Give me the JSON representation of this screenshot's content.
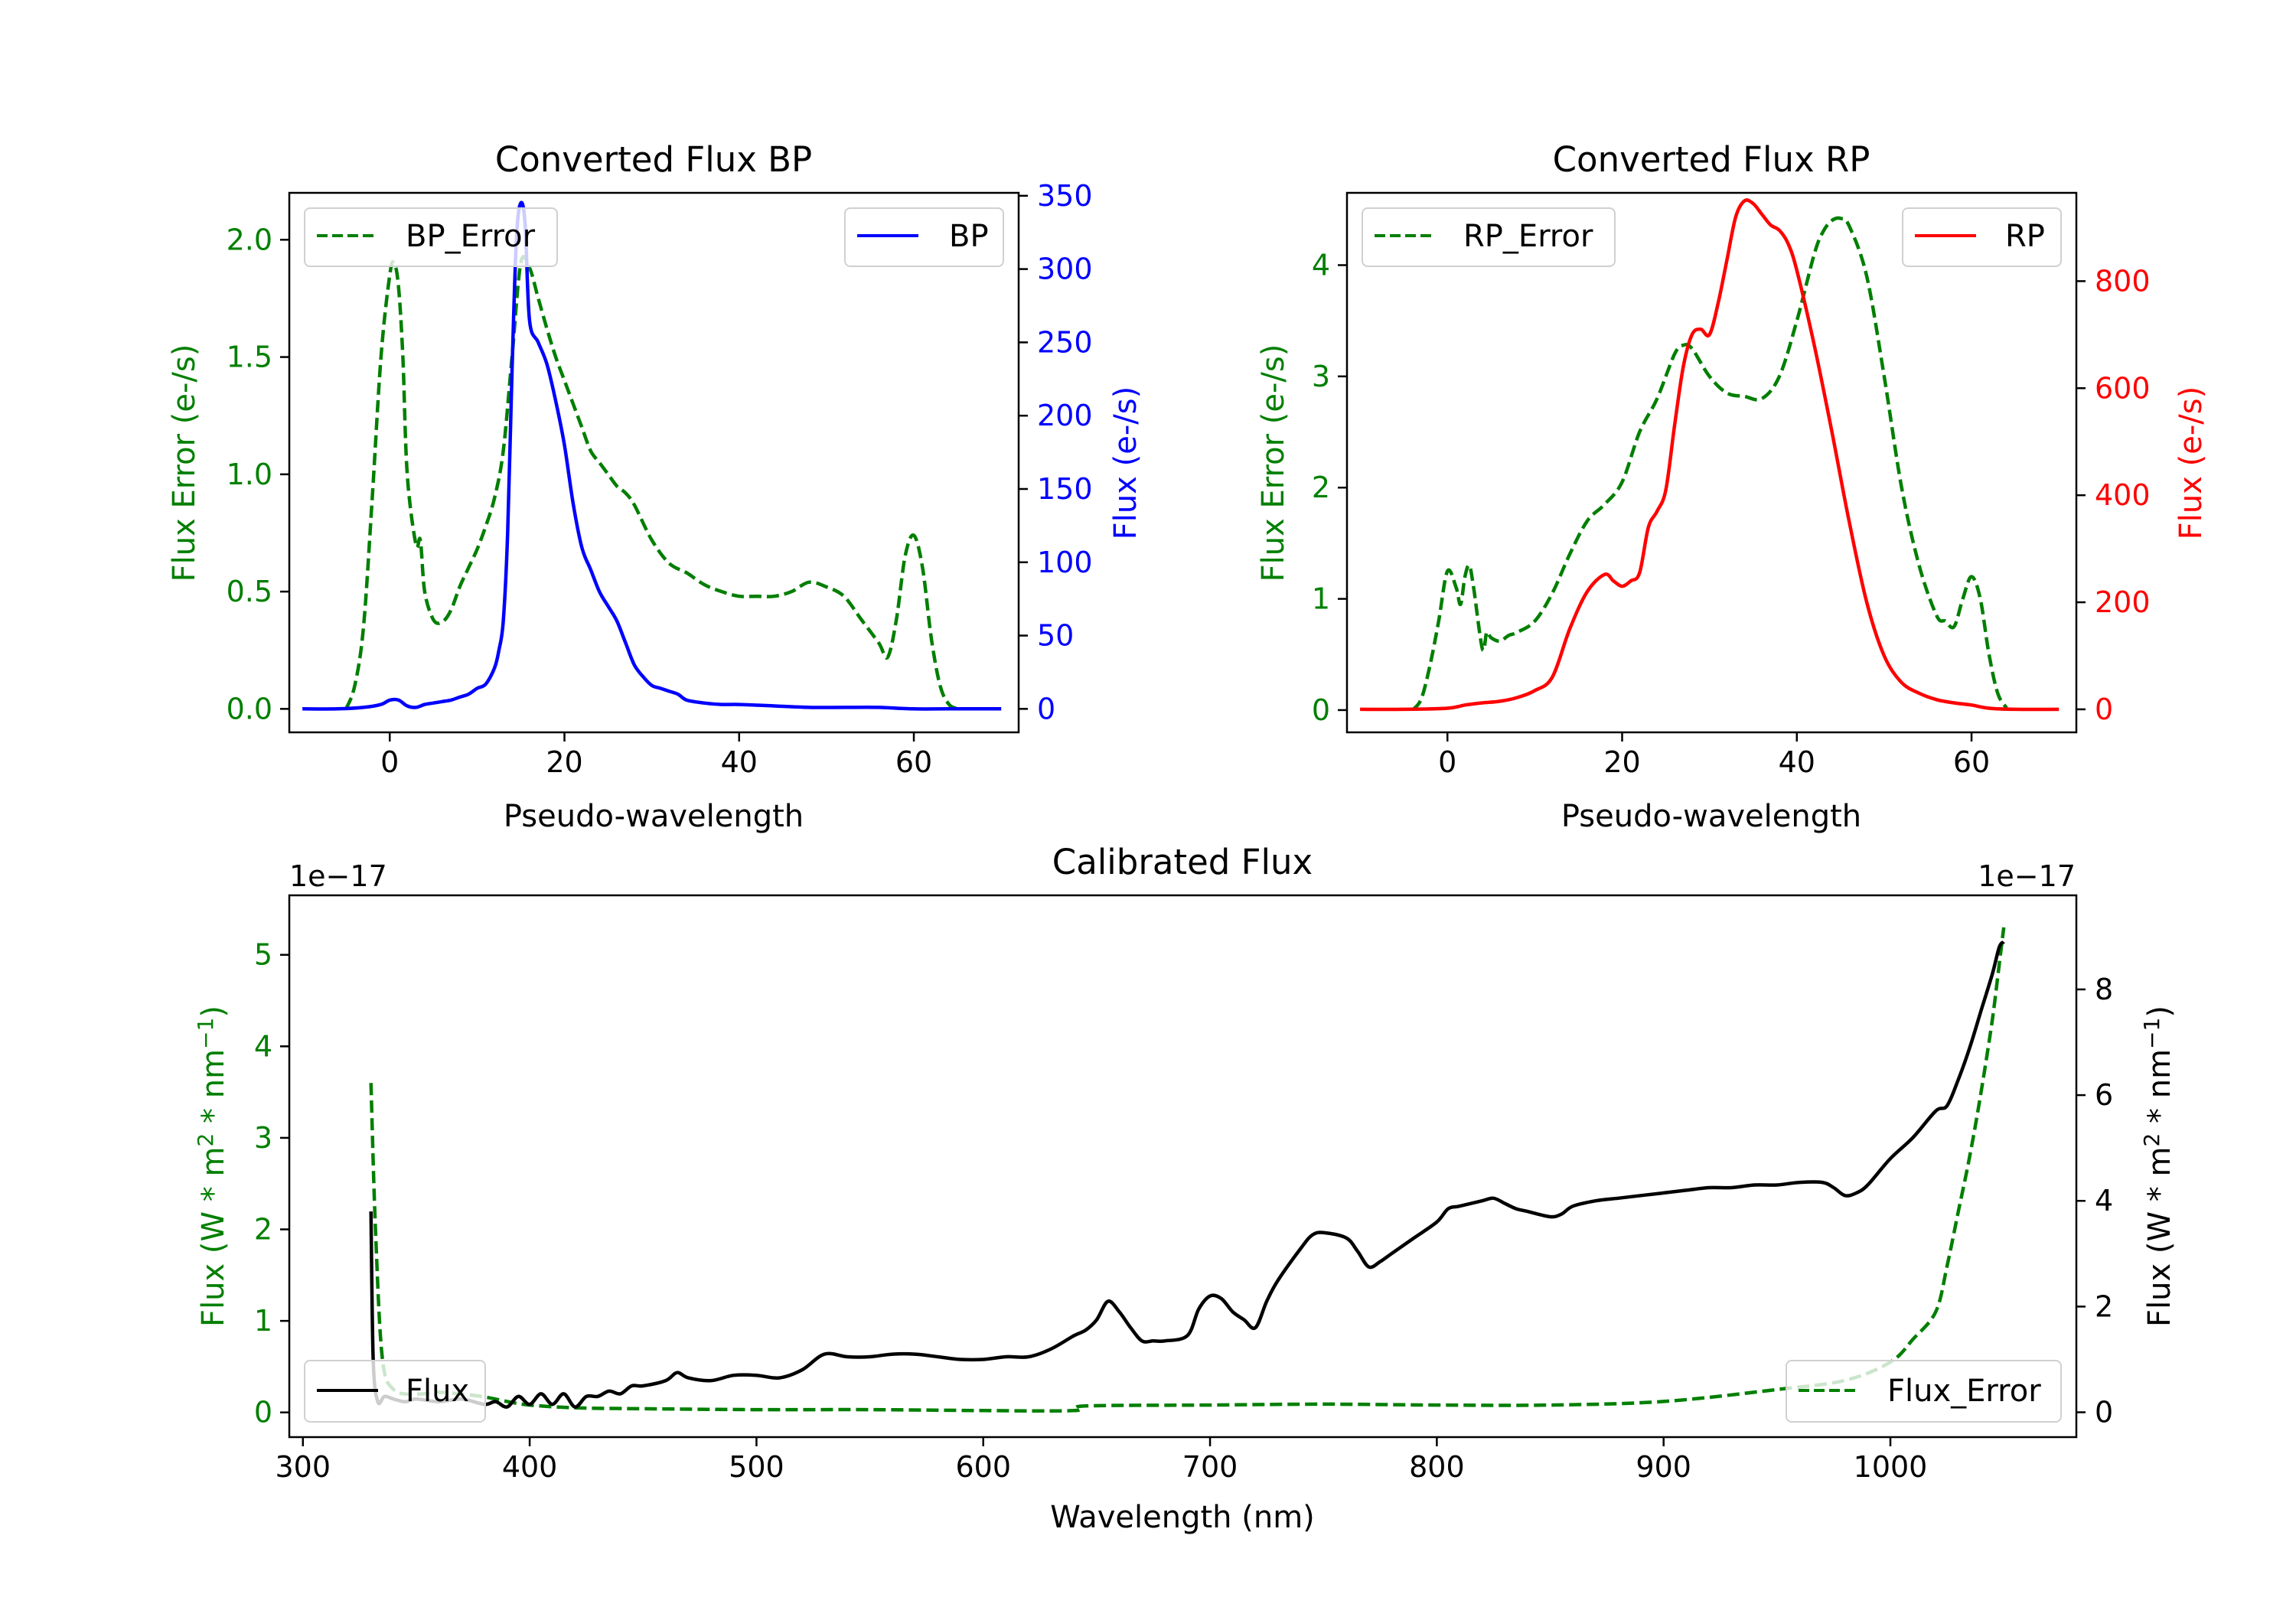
{
  "colors": {
    "bp": "#0000ff",
    "rp": "#ff0000",
    "error": "#007f00",
    "flux": "#000000",
    "axis": "#000000",
    "background": "#ffffff"
  },
  "chart_data": [
    {
      "id": "bp",
      "type": "line",
      "title": "Converted Flux BP",
      "xlabel": "Pseudo-wavelength",
      "ylabel_left": "Flux Error (e-/s)",
      "ylabel_right": "Flux (e-/s)",
      "xlim": [
        -11.5,
        72
      ],
      "ylim_left": [
        -0.1,
        2.2
      ],
      "ylim_right": [
        -16,
        352
      ],
      "xticks": [
        0,
        20,
        40,
        60
      ],
      "yticks_left": [
        "0.0",
        "0.5",
        "1.0",
        "1.5",
        "2.0"
      ],
      "yticks_right": [
        0,
        50,
        100,
        150,
        200,
        250,
        300,
        350
      ],
      "legend_left": {
        "label": "BP_Error",
        "placement": "upper left"
      },
      "legend_right": {
        "label": "BP",
        "placement": "upper right"
      },
      "series": [
        {
          "name": "BP_Error",
          "axis": "left",
          "style": "dashed",
          "color": "#007f00",
          "x": [
            -5,
            -4,
            -3,
            -2,
            -1,
            0,
            0.5,
            1,
            1.5,
            2,
            3,
            3.5,
            4,
            5,
            6,
            7,
            8,
            9,
            10,
            11,
            12,
            13,
            14,
            15,
            16,
            17,
            18,
            19,
            20,
            21,
            22,
            23,
            24,
            25,
            26,
            27,
            28,
            30,
            32,
            34,
            36,
            38,
            40,
            42,
            44,
            46,
            48,
            50,
            52,
            54,
            56,
            57,
            58,
            59,
            60,
            61,
            62,
            63,
            64,
            65
          ],
          "y": [
            0.0,
            0.1,
            0.35,
            0.9,
            1.5,
            1.85,
            1.9,
            1.8,
            1.5,
            1.0,
            0.7,
            0.72,
            0.5,
            0.38,
            0.37,
            0.42,
            0.52,
            0.6,
            0.68,
            0.78,
            0.9,
            1.1,
            1.5,
            1.9,
            1.88,
            1.75,
            1.62,
            1.5,
            1.4,
            1.3,
            1.2,
            1.1,
            1.05,
            1.0,
            0.95,
            0.92,
            0.87,
            0.72,
            0.62,
            0.58,
            0.53,
            0.5,
            0.48,
            0.48,
            0.48,
            0.5,
            0.54,
            0.52,
            0.48,
            0.38,
            0.28,
            0.22,
            0.38,
            0.65,
            0.74,
            0.6,
            0.3,
            0.1,
            0.02,
            0.0
          ]
        },
        {
          "name": "BP",
          "axis": "right",
          "style": "solid",
          "color": "#0000ff",
          "x": [
            -10,
            -6,
            -3,
            -1,
            0,
            1,
            2,
            3,
            4,
            5,
            6,
            7,
            8,
            9,
            10,
            11,
            12,
            12.5,
            13,
            13.5,
            14,
            14.5,
            15,
            15.5,
            16,
            17,
            18,
            19,
            20,
            21,
            22,
            23,
            24,
            25,
            26,
            27,
            28,
            29,
            30,
            31,
            32,
            33,
            34,
            36,
            38,
            40,
            44,
            48,
            52,
            56,
            60,
            64,
            70
          ],
          "y": [
            0,
            0,
            1,
            3,
            6,
            6,
            2,
            1,
            3,
            4,
            5,
            6,
            8,
            10,
            14,
            17,
            28,
            40,
            60,
            120,
            230,
            320,
            345,
            330,
            265,
            250,
            235,
            210,
            180,
            140,
            110,
            95,
            80,
            70,
            60,
            45,
            30,
            22,
            16,
            14,
            12,
            10,
            6,
            4,
            3,
            3,
            2,
            1,
            1,
            1,
            0,
            0,
            0
          ]
        }
      ]
    },
    {
      "id": "rp",
      "type": "line",
      "title": "Converted Flux RP",
      "xlabel": "Pseudo-wavelength",
      "ylabel_left": "Flux Error (e-/s)",
      "ylabel_right": "Flux (e-/s)",
      "xlim": [
        -11.5,
        72
      ],
      "ylim_left": [
        -0.2,
        4.65
      ],
      "ylim_right": [
        -43,
        965
      ],
      "xticks": [
        0,
        20,
        40,
        60
      ],
      "yticks_left": [
        0,
        1,
        2,
        3,
        4
      ],
      "yticks_right": [
        0,
        200,
        400,
        600,
        800
      ],
      "legend_left": {
        "label": "RP_Error",
        "placement": "upper left"
      },
      "legend_right": {
        "label": "RP",
        "placement": "upper right"
      },
      "series": [
        {
          "name": "RP_Error",
          "axis": "left",
          "style": "dashed",
          "color": "#007f00",
          "x": [
            -4,
            -3,
            -2,
            -1,
            0,
            1,
            1.5,
            2,
            2.5,
            3,
            4,
            4.5,
            5,
            6,
            7,
            8,
            10,
            12,
            14,
            16,
            18,
            20,
            22,
            24,
            26,
            27,
            28,
            30,
            32,
            34,
            36,
            38,
            40,
            42,
            43,
            44,
            45,
            46,
            48,
            50,
            52,
            54,
            56,
            57,
            58,
            59,
            60,
            61,
            62,
            63,
            64
          ],
          "y": [
            0,
            0.1,
            0.4,
            0.8,
            1.25,
            1.1,
            0.95,
            1.2,
            1.3,
            1.1,
            0.55,
            0.7,
            0.65,
            0.62,
            0.67,
            0.7,
            0.8,
            1.05,
            1.4,
            1.7,
            1.85,
            2.05,
            2.5,
            2.8,
            3.2,
            3.28,
            3.25,
            3.0,
            2.85,
            2.82,
            2.8,
            3.0,
            3.5,
            4.1,
            4.3,
            4.4,
            4.42,
            4.35,
            3.9,
            3.0,
            2.0,
            1.3,
            0.85,
            0.8,
            0.75,
            1.0,
            1.2,
            1.0,
            0.5,
            0.15,
            0.02
          ]
        },
        {
          "name": "RP",
          "axis": "right",
          "style": "solid",
          "color": "#ff0000",
          "x": [
            -10,
            -5,
            0,
            2,
            4,
            6,
            8,
            10,
            12,
            14,
            16,
            18,
            19,
            20,
            21,
            22,
            23,
            24,
            25,
            26,
            27,
            28,
            29,
            30,
            31,
            32,
            33,
            34,
            35,
            36,
            37,
            38,
            39,
            40,
            42,
            44,
            46,
            48,
            50,
            52,
            54,
            56,
            58,
            60,
            62,
            65,
            70
          ],
          "y": [
            0,
            0,
            2,
            8,
            12,
            15,
            22,
            35,
            60,
            150,
            220,
            252,
            240,
            230,
            240,
            255,
            340,
            370,
            410,
            530,
            640,
            700,
            710,
            700,
            760,
            840,
            920,
            950,
            945,
            925,
            905,
            895,
            870,
            820,
            680,
            520,
            350,
            200,
            100,
            50,
            30,
            18,
            12,
            8,
            2,
            0,
            0
          ]
        }
      ]
    },
    {
      "id": "calibrated",
      "type": "line",
      "title": "Calibrated Flux",
      "xlabel": "Wavelength (nm)",
      "ylabel_left": "Flux (W * m$^2$ * nm$^{-1}$)",
      "ylabel_left_text": "Flux (W * m",
      "ylabel_right_text": "Flux (W * m",
      "ylabel_sup_1": "2",
      "ylabel_mid": " * nm",
      "ylabel_sup_2": "−1",
      "ylabel_close": ")",
      "offset_left": "1e−17",
      "offset_right": "1e−17",
      "xlim": [
        294,
        1082
      ],
      "ylim_left": [
        -0.27,
        5.65
      ],
      "ylim_right": [
        -0.47,
        9.78
      ],
      "xticks": [
        300,
        400,
        500,
        600,
        700,
        800,
        900,
        1000
      ],
      "yticks_left": [
        0,
        1,
        2,
        3,
        4,
        5
      ],
      "yticks_right": [
        0,
        2,
        4,
        6,
        8
      ],
      "legend_left": {
        "label": "Flux",
        "placement": "lower left"
      },
      "legend_right": {
        "label": "Flux_Error",
        "placement": "lower right"
      },
      "series": [
        {
          "name": "Flux_Error",
          "axis": "left",
          "style": "dashed",
          "color": "#007f00",
          "x": [
            330,
            332,
            335,
            340,
            350,
            360,
            370,
            380,
            390,
            400,
            420,
            450,
            500,
            550,
            600,
            640,
            645,
            700,
            750,
            800,
            850,
            900,
            950,
            980,
            1000,
            1010,
            1020,
            1025,
            1030,
            1035,
            1040,
            1045,
            1048,
            1050
          ],
          "y": [
            3.6,
            2.0,
            0.6,
            0.25,
            0.2,
            0.22,
            0.2,
            0.17,
            0.12,
            0.08,
            0.05,
            0.04,
            0.03,
            0.03,
            0.02,
            0.02,
            0.07,
            0.08,
            0.09,
            0.08,
            0.08,
            0.12,
            0.25,
            0.35,
            0.55,
            0.8,
            1.1,
            1.6,
            2.2,
            2.8,
            3.5,
            4.3,
            4.9,
            5.3
          ]
        },
        {
          "name": "Flux",
          "axis": "right",
          "style": "solid",
          "color": "#000000",
          "x": [
            330,
            331,
            333,
            336,
            340,
            345,
            350,
            360,
            370,
            380,
            385,
            390,
            395,
            400,
            405,
            410,
            415,
            420,
            425,
            430,
            435,
            440,
            445,
            450,
            460,
            465,
            470,
            480,
            490,
            500,
            510,
            520,
            530,
            540,
            550,
            560,
            570,
            580,
            590,
            600,
            610,
            620,
            630,
            640,
            645,
            650,
            655,
            660,
            665,
            670,
            675,
            680,
            690,
            695,
            700,
            705,
            710,
            715,
            720,
            725,
            730,
            740,
            745,
            750,
            760,
            765,
            770,
            775,
            780,
            790,
            800,
            805,
            810,
            820,
            825,
            830,
            835,
            840,
            850,
            855,
            860,
            870,
            880,
            890,
            900,
            910,
            920,
            930,
            940,
            950,
            960,
            970,
            975,
            980,
            985,
            990,
            1000,
            1010,
            1020,
            1025,
            1030,
            1035,
            1040,
            1045,
            1048,
            1050
          ],
          "y": [
            3.8,
            1.0,
            0.2,
            0.3,
            0.25,
            0.2,
            0.25,
            0.2,
            0.25,
            0.15,
            0.2,
            0.1,
            0.3,
            0.15,
            0.35,
            0.15,
            0.35,
            0.1,
            0.3,
            0.3,
            0.4,
            0.35,
            0.5,
            0.5,
            0.6,
            0.75,
            0.65,
            0.6,
            0.7,
            0.7,
            0.65,
            0.8,
            1.1,
            1.05,
            1.05,
            1.1,
            1.1,
            1.05,
            1.0,
            1.0,
            1.05,
            1.05,
            1.2,
            1.45,
            1.55,
            1.75,
            2.1,
            1.9,
            1.6,
            1.35,
            1.35,
            1.35,
            1.45,
            1.95,
            2.2,
            2.15,
            1.9,
            1.75,
            1.6,
            2.1,
            2.5,
            3.1,
            3.35,
            3.4,
            3.3,
            3.05,
            2.75,
            2.85,
            3.0,
            3.3,
            3.6,
            3.85,
            3.9,
            4.0,
            4.05,
            3.95,
            3.85,
            3.8,
            3.7,
            3.75,
            3.9,
            4.0,
            4.05,
            4.1,
            4.15,
            4.2,
            4.25,
            4.25,
            4.3,
            4.3,
            4.35,
            4.35,
            4.25,
            4.1,
            4.15,
            4.3,
            4.8,
            5.2,
            5.7,
            5.8,
            6.3,
            6.9,
            7.6,
            8.3,
            8.8,
            8.9
          ]
        }
      ]
    }
  ]
}
